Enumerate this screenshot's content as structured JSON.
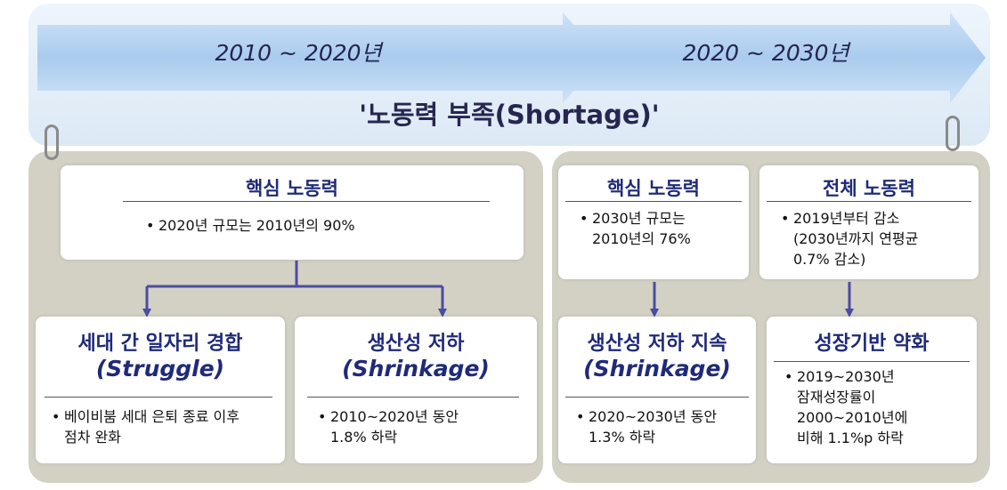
{
  "timeline": {
    "period1": "2010 ~ 2020년",
    "period2": "2020 ~ 2030년",
    "headline": "'노동력 부족(Shortage)'"
  },
  "left": {
    "core": {
      "title": "핵심 노동력",
      "bullet_lines": [
        "2020년 규모는 2010년의 90%"
      ]
    },
    "struggle": {
      "title": "세대 간 일자리 경합",
      "subtitle": "(Struggle)",
      "bullet_lines": [
        "베이비붐 세대 은퇴 종료 이후",
        "점차 완화"
      ]
    },
    "shrink": {
      "title": "생산성 저하",
      "subtitle": "(Shrinkage)",
      "bullet_lines": [
        "2010~2020년 동안",
        "1.8% 하락"
      ]
    }
  },
  "right": {
    "core": {
      "title": "핵심 노동력",
      "bullet_lines": [
        "2030년 규모는",
        "2010년의 76%"
      ]
    },
    "total": {
      "title": "전체 노동력",
      "bullet_lines": [
        "2019년부터 감소",
        "(2030년까지 연평균",
        "0.7% 감소)"
      ]
    },
    "shrink": {
      "title": "생산성 저하 지속",
      "subtitle": "(Shrinkage)",
      "bullet_lines": [
        "2020~2030년 동안",
        "1.3% 하락"
      ]
    },
    "growth": {
      "title": "성장기반 약화",
      "bullet_lines": [
        "2019~2030년",
        "잠재성장률이",
        "2000~2010년에",
        "비해  1.1%p 하락"
      ]
    }
  },
  "bullet_char": "•",
  "colors": {
    "accent": "#1f2a78",
    "arrow": "#4b4ca3",
    "band_arrow": "#b6d3f1",
    "panel": "#d3d1c4"
  }
}
